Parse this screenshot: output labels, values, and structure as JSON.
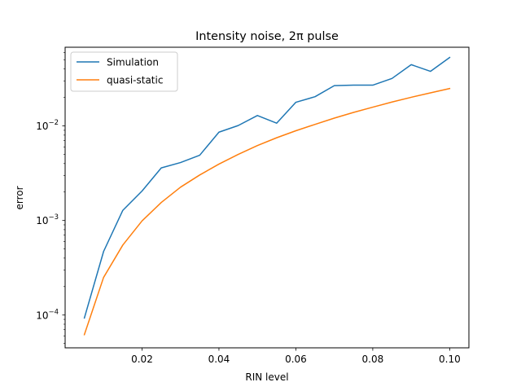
{
  "chart_data": {
    "type": "line",
    "title": "Intensity noise, 2π pulse",
    "xlabel": "RIN level",
    "ylabel": "error",
    "xscale": "linear",
    "yscale": "log",
    "xlim": [
      0.0,
      0.105
    ],
    "ylim": [
      4.5e-05,
      0.068
    ],
    "xticks": [
      {
        "value": 0.02,
        "label": "0.02"
      },
      {
        "value": 0.04,
        "label": "0.04"
      },
      {
        "value": 0.06,
        "label": "0.06"
      },
      {
        "value": 0.08,
        "label": "0.08"
      },
      {
        "value": 0.1,
        "label": "0.10"
      }
    ],
    "yticks": [
      {
        "value": 0.0001,
        "base": "10",
        "exp": "−4"
      },
      {
        "value": 0.001,
        "base": "10",
        "exp": "−3"
      },
      {
        "value": 0.01,
        "base": "10",
        "exp": "−2"
      }
    ],
    "grid": false,
    "legend_position": "top-left",
    "x": [
      0.005,
      0.01,
      0.015,
      0.02,
      0.025,
      0.03,
      0.035,
      0.04,
      0.045,
      0.05,
      0.055,
      0.06,
      0.065,
      0.07,
      0.075,
      0.08,
      0.085,
      0.09,
      0.095,
      0.1
    ],
    "series": [
      {
        "name": "Simulation",
        "color": "#1f77b4",
        "values": [
          9.3e-05,
          0.00047,
          0.00128,
          0.00205,
          0.0036,
          0.0041,
          0.0049,
          0.0086,
          0.0101,
          0.0129,
          0.0107,
          0.0178,
          0.0204,
          0.0267,
          0.027,
          0.027,
          0.0318,
          0.0445,
          0.0378,
          0.053
        ]
      },
      {
        "name": "quasi-static",
        "color": "#ff7f0e",
        "values": [
          6.2e-05,
          0.00025,
          0.00055,
          0.00099,
          0.00155,
          0.00225,
          0.00303,
          0.00395,
          0.005,
          0.0062,
          0.0075,
          0.0089,
          0.0104,
          0.0121,
          0.0139,
          0.0158,
          0.0179,
          0.0201,
          0.0224,
          0.0249
        ]
      }
    ]
  }
}
